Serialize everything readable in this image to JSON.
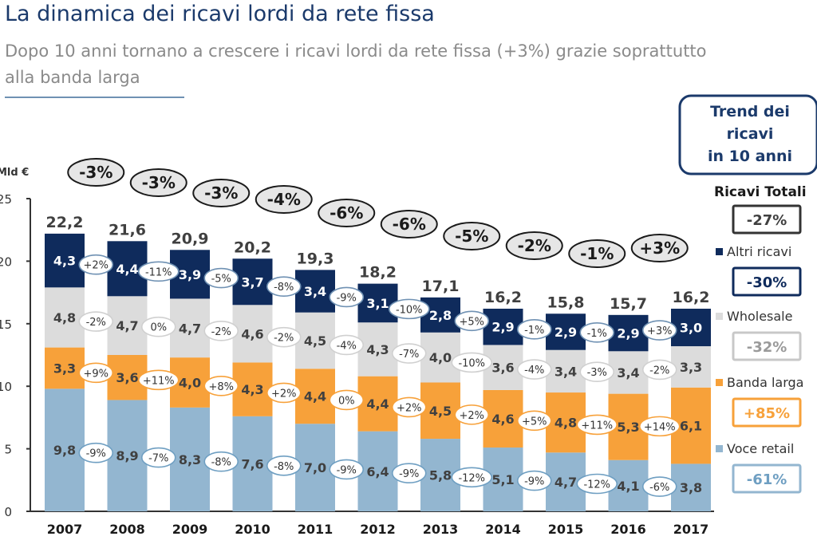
{
  "header": {
    "title": "La dinamica dei ricavi lordi da rete fissa",
    "subtitle": "Dopo 10 anni tornano a crescere i ricavi lordi da rete fissa (+3%) grazie soprattutto alla banda larga"
  },
  "chart_data": {
    "type": "bar",
    "stacked": true,
    "ylabel": "Mld €",
    "ylim": [
      0,
      25
    ],
    "yticks": [
      0,
      5,
      10,
      15,
      20,
      25
    ],
    "categories": [
      "2007",
      "2008",
      "2009",
      "2010",
      "2011",
      "2012",
      "2013",
      "2014",
      "2015",
      "2016",
      "2017"
    ],
    "totals": [
      "22,2",
      "21,6",
      "20,9",
      "20,2",
      "19,3",
      "18,2",
      "17,1",
      "16,2",
      "15,8",
      "15,7",
      "16,2"
    ],
    "total_changes": [
      "-3%",
      "-3%",
      "-3%",
      "-4%",
      "-6%",
      "-6%",
      "-5%",
      "-2%",
      "-1%",
      "+3%"
    ],
    "series": [
      {
        "name": "Voce retail",
        "color": "#93b6d0",
        "values": [
          9.8,
          8.9,
          8.3,
          7.6,
          7.0,
          6.4,
          5.8,
          5.1,
          4.7,
          4.1,
          3.8
        ],
        "labels": [
          "9,8",
          "8,9",
          "8,3",
          "7,6",
          "7,0",
          "6,4",
          "5,8",
          "5,1",
          "4,7",
          "4,1",
          "3,8"
        ],
        "changes": [
          "-9%",
          "-7%",
          "-8%",
          "-8%",
          "-9%",
          "-9%",
          "-12%",
          "-9%",
          "-12%",
          "-6%"
        ]
      },
      {
        "name": "Banda larga",
        "color": "#f7a13a",
        "values": [
          3.3,
          3.6,
          4.0,
          4.3,
          4.4,
          4.4,
          4.5,
          4.6,
          4.8,
          5.3,
          6.1
        ],
        "labels": [
          "3,3",
          "3,6",
          "4,0",
          "4,3",
          "4,4",
          "4,4",
          "4,5",
          "4,6",
          "4,8",
          "5,3",
          "6,1"
        ],
        "changes": [
          "+9%",
          "+11%",
          "+8%",
          "+2%",
          "0%",
          "+2%",
          "+2%",
          "+5%",
          "+11%",
          "+14%"
        ]
      },
      {
        "name": "Wholesale",
        "color": "#dcdcdc",
        "values": [
          4.8,
          4.7,
          4.7,
          4.6,
          4.5,
          4.3,
          4.0,
          3.6,
          3.4,
          3.4,
          3.3
        ],
        "labels": [
          "4,8",
          "4,7",
          "4,7",
          "4,6",
          "4,5",
          "4,3",
          "4,0",
          "3,6",
          "3,4",
          "3,4",
          "3,3"
        ],
        "changes": [
          "-2%",
          "0%",
          "-2%",
          "-2%",
          "-4%",
          "-7%",
          "-10%",
          "-4%",
          "-3%",
          "-2%"
        ]
      },
      {
        "name": "Altri ricavi",
        "color": "#0f2b5c",
        "values": [
          4.3,
          4.4,
          3.9,
          3.7,
          3.4,
          3.1,
          2.8,
          2.9,
          2.9,
          2.9,
          3.0
        ],
        "labels": [
          "4,3",
          "4,4",
          "3,9",
          "3,7",
          "3,4",
          "3,1",
          "2,8",
          "2,9",
          "2,9",
          "2,9",
          "3,0"
        ],
        "changes": [
          "+2%",
          "-11%",
          "-5%",
          "-8%",
          "-9%",
          "-10%",
          "+5%",
          "-1%",
          "-1%",
          "+3%"
        ]
      }
    ]
  },
  "legend": {
    "box_title": "Trend dei ricavi in 10 anni",
    "box_lines": [
      "Trend dei",
      "ricavi",
      "in 10 anni"
    ],
    "items": [
      {
        "label": "Ricavi Totali",
        "value": "-27%",
        "border": "#333333",
        "text": "#404040",
        "bold_label": true
      },
      {
        "label": "Altri ricavi",
        "value": "-30%",
        "border": "#0f2b5c",
        "text": "#0f2b5c",
        "marker": "#0f2b5c"
      },
      {
        "label": "Wholesale",
        "value": "-32%",
        "border": "#c8c8c8",
        "text": "#9a9a9a",
        "marker": "#dcdcdc"
      },
      {
        "label": "Banda larga",
        "value": "+85%",
        "border": "#f7a13a",
        "text": "#f7a13a",
        "marker": "#f7a13a"
      },
      {
        "label": "Voce retail",
        "value": "-61%",
        "border": "#93b6d0",
        "text": "#6f9fc2",
        "marker": "#93b6d0"
      }
    ]
  }
}
